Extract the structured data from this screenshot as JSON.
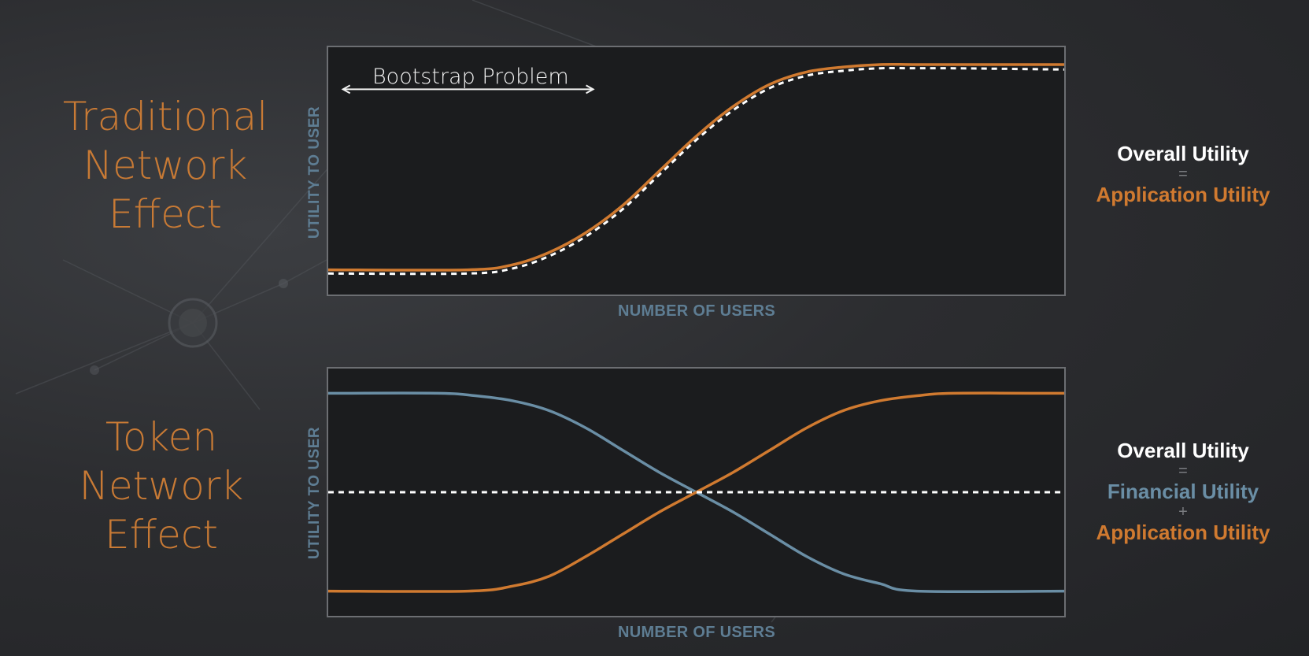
{
  "left_titles": {
    "top": [
      "Traditional",
      "Network",
      "Effect"
    ],
    "bottom": [
      "Token",
      "Network",
      "Effect"
    ]
  },
  "colors": {
    "application": "#d07a30",
    "financial": "#6a8ea5",
    "overall": "#ffffff",
    "axis_label": "#5e7d93"
  },
  "annotation": {
    "bootstrap": "Bootstrap Problem"
  },
  "right_equations": {
    "top": {
      "overall": "Overall Utility",
      "op1": "=",
      "term1": "Application Utility"
    },
    "bottom": {
      "overall": "Overall Utility",
      "op1": "=",
      "term1": "Financial Utility",
      "op2": "+",
      "term2": "Application Utility"
    }
  },
  "chart_data": [
    {
      "type": "line",
      "xlabel": "NUMBER OF USERS",
      "ylabel": "UTILITY TO USER",
      "xlim": [
        0,
        1
      ],
      "ylim": [
        0,
        1
      ],
      "grid": false,
      "series": [
        {
          "color": "#d07a30",
          "style": "solid",
          "x": [
            0,
            0.19,
            0.25,
            0.3,
            0.35,
            0.4,
            0.45,
            0.5,
            0.55,
            0.6,
            0.65,
            0.7,
            0.75,
            0.8,
            0.85,
            1.0
          ],
          "y": [
            0.1,
            0.1,
            0.12,
            0.17,
            0.25,
            0.36,
            0.5,
            0.64,
            0.76,
            0.85,
            0.9,
            0.92,
            0.93,
            0.93,
            0.93,
            0.93
          ]
        },
        {
          "color": "#ffffff",
          "style": "dashed",
          "x": [
            0,
            0.19,
            0.25,
            0.3,
            0.35,
            0.4,
            0.45,
            0.5,
            0.55,
            0.6,
            0.65,
            0.7,
            0.75,
            0.8,
            0.85,
            1.0
          ],
          "y": [
            0.085,
            0.085,
            0.105,
            0.155,
            0.235,
            0.345,
            0.485,
            0.625,
            0.745,
            0.835,
            0.885,
            0.905,
            0.915,
            0.915,
            0.915,
            0.91
          ]
        }
      ],
      "annotations": [
        {
          "text": "Bootstrap Problem",
          "x_range": [
            0.02,
            0.36
          ],
          "y": 0.83
        }
      ]
    },
    {
      "type": "line",
      "xlabel": "NUMBER OF USERS",
      "ylabel": "UTILITY TO USER",
      "xlim": [
        0,
        1
      ],
      "ylim": [
        0,
        1
      ],
      "grid": false,
      "series": [
        {
          "color": "#6a8ea5",
          "style": "solid",
          "x": [
            0,
            0.15,
            0.2,
            0.25,
            0.3,
            0.35,
            0.4,
            0.45,
            0.5,
            0.55,
            0.6,
            0.65,
            0.7,
            0.75,
            0.8,
            1.0
          ],
          "y": [
            0.9,
            0.9,
            0.89,
            0.87,
            0.83,
            0.76,
            0.67,
            0.58,
            0.5,
            0.42,
            0.33,
            0.24,
            0.17,
            0.13,
            0.1,
            0.1
          ]
        },
        {
          "color": "#d07a30",
          "style": "solid",
          "x": [
            0,
            0.19,
            0.25,
            0.3,
            0.35,
            0.4,
            0.45,
            0.5,
            0.55,
            0.6,
            0.65,
            0.7,
            0.75,
            0.8,
            0.85,
            1.0
          ],
          "y": [
            0.1,
            0.1,
            0.12,
            0.16,
            0.24,
            0.33,
            0.42,
            0.5,
            0.58,
            0.67,
            0.76,
            0.83,
            0.87,
            0.89,
            0.9,
            0.9
          ]
        },
        {
          "color": "#ffffff",
          "style": "dashed",
          "x": [
            0,
            1.0
          ],
          "y": [
            0.5,
            0.5
          ]
        }
      ]
    }
  ]
}
